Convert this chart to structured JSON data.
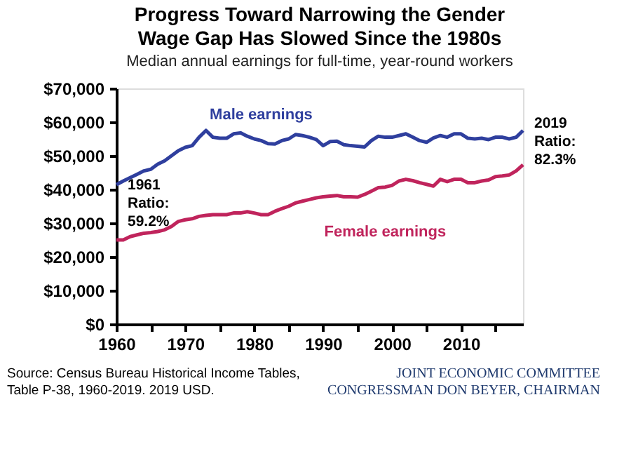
{
  "chart_data": {
    "type": "line",
    "title": "Progress Toward Narrowing the Gender Wage Gap Has Slowed Since the 1980s",
    "subtitle": "Median annual earnings for full-time, year-round workers",
    "x": [
      1960,
      1961,
      1962,
      1963,
      1964,
      1965,
      1966,
      1967,
      1968,
      1969,
      1970,
      1971,
      1972,
      1973,
      1974,
      1975,
      1976,
      1977,
      1978,
      1979,
      1980,
      1981,
      1982,
      1983,
      1984,
      1985,
      1986,
      1987,
      1988,
      1989,
      1990,
      1991,
      1992,
      1993,
      1994,
      1995,
      1996,
      1997,
      1998,
      1999,
      2000,
      2001,
      2002,
      2003,
      2004,
      2005,
      2006,
      2007,
      2008,
      2009,
      2010,
      2011,
      2012,
      2013,
      2014,
      2015,
      2016,
      2017,
      2018,
      2019
    ],
    "series": [
      {
        "name": "Male earnings",
        "color": "#2f3f9e",
        "values": [
          41400,
          42500,
          43500,
          44500,
          45500,
          46000,
          47500,
          48500,
          50000,
          51500,
          52500,
          53000,
          55500,
          57500,
          55500,
          55200,
          55200,
          56500,
          56800,
          55800,
          55000,
          54500,
          53600,
          53500,
          54500,
          55000,
          56300,
          56000,
          55500,
          54800,
          53000,
          54200,
          54300,
          53300,
          53000,
          52800,
          52600,
          54500,
          55800,
          55500,
          55500,
          56000,
          56500,
          55500,
          54500,
          54000,
          55300,
          56000,
          55500,
          56500,
          56500,
          55200,
          55000,
          55200,
          54800,
          55500,
          55500,
          55000,
          55500,
          57500
        ]
      },
      {
        "name": "Female earnings",
        "color": "#c0245c",
        "values": [
          25000,
          25000,
          26000,
          26500,
          27000,
          27200,
          27500,
          28000,
          29000,
          30500,
          31000,
          31300,
          32000,
          32300,
          32500,
          32500,
          32500,
          33000,
          33000,
          33400,
          33000,
          32500,
          32500,
          33500,
          34300,
          35000,
          36000,
          36500,
          37000,
          37500,
          37800,
          38000,
          38200,
          37800,
          37800,
          37700,
          38500,
          39500,
          40500,
          40700,
          41200,
          42500,
          43000,
          42600,
          42000,
          41500,
          41000,
          43000,
          42300,
          43000,
          43000,
          42000,
          42000,
          42500,
          42800,
          43800,
          44000,
          44300,
          45500,
          47300
        ]
      }
    ],
    "xlim": [
      1960,
      2019
    ],
    "xticks": [
      1960,
      {
        "value": 1965,
        "label": null
      },
      1970,
      {
        "value": 1975,
        "label": null
      },
      1980,
      {
        "value": 1985,
        "label": null
      },
      1990,
      {
        "value": 1995,
        "label": null
      },
      2000,
      {
        "value": 2005,
        "label": null
      },
      2010,
      {
        "value": 2015,
        "label": null
      }
    ],
    "ylim": [
      0,
      70000
    ],
    "yticks": [
      {
        "value": 0,
        "label": "$0"
      },
      {
        "value": 10000,
        "label": "$10,000"
      },
      {
        "value": 20000,
        "label": "$20,000"
      },
      {
        "value": 30000,
        "label": "$30,000"
      },
      {
        "value": 40000,
        "label": "$40,000"
      },
      {
        "value": 50000,
        "label": "$50,000"
      },
      {
        "value": 60000,
        "label": "$60,000"
      },
      {
        "value": 70000,
        "label": "$70,000"
      }
    ],
    "grid": false,
    "marker": "none",
    "line_style": "solid",
    "annotations": [
      "1961\nRatio:\n59.2%",
      "2019\nRatio:\n82.3%",
      "Source: Census Bureau Historical Income Tables,\nTable P-38, 1960-2019. 2019 USD.",
      "JOINT ECONOMIC COMMITTEE\nCONGRESSMAN DON BEYER, CHAIRMAN"
    ]
  }
}
